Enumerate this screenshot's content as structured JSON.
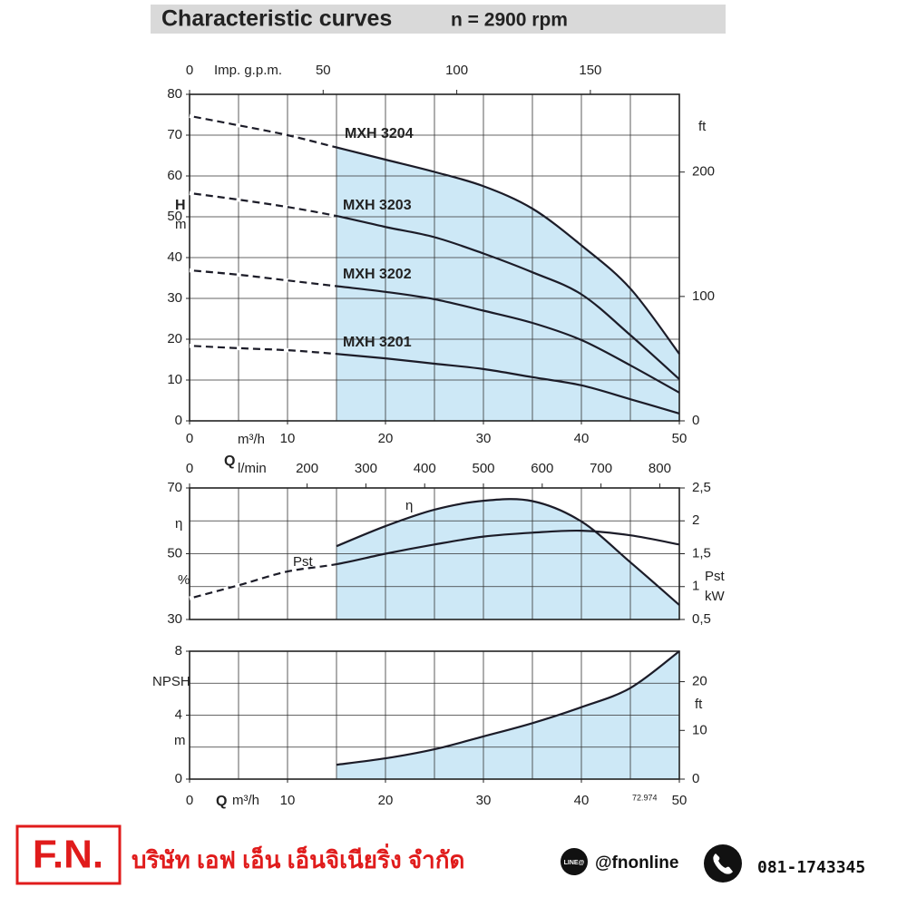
{
  "header": {
    "title": "Characteristic curves",
    "subtitle": "n = 2900 rpm"
  },
  "chart_data": [
    {
      "type": "line",
      "x": [
        0,
        5,
        10,
        15,
        20,
        25,
        30,
        35,
        40,
        45,
        50
      ],
      "xlim": [
        0,
        50
      ],
      "xticks": [
        0,
        10,
        20,
        30,
        40,
        50
      ],
      "x_unit": "m³/h",
      "xgrid": [
        5,
        10,
        15,
        20,
        25,
        30,
        35,
        40,
        45
      ],
      "x2lim": [
        0,
        183.3
      ],
      "x2ticks": [
        0,
        50,
        100,
        150
      ],
      "x2_label": "Imp. g.p.m.",
      "ylim": [
        0,
        80
      ],
      "yticks": [
        0,
        10,
        20,
        30,
        40,
        50,
        60,
        70,
        80
      ],
      "ygrid": [
        10,
        20,
        30,
        40,
        50,
        60,
        70
      ],
      "y_label": "H",
      "y_unit": "m",
      "y2lim": [
        0,
        262.5
      ],
      "y2ticks": [
        0,
        100,
        200
      ],
      "y2_label": "ft",
      "grid": true,
      "highlight_from": 15,
      "shade_series": 0,
      "shade_color": "#cde8f6",
      "series": [
        {
          "name": "MXH 3204",
          "color": "#1c1c28",
          "values": [
            74.7,
            72.4,
            70,
            67,
            64,
            61,
            57.5,
            52,
            43,
            32.4,
            16.4
          ]
        },
        {
          "name": "MXH 3203",
          "color": "#1c1c28",
          "values": [
            55.8,
            54.2,
            52.4,
            50.2,
            47.5,
            45,
            41,
            36.4,
            31,
            21,
            10.2
          ]
        },
        {
          "name": "MXH 3202",
          "color": "#1c1c28",
          "values": [
            36.9,
            35.8,
            34.4,
            33,
            31.6,
            29.8,
            27,
            24,
            19.8,
            13.6,
            6.9
          ]
        },
        {
          "name": "MXH 3201",
          "color": "#1c1c28",
          "values": [
            18.4,
            17.8,
            17.3,
            16.4,
            15.3,
            14,
            12.7,
            10.7,
            8.7,
            5.3,
            1.8
          ]
        }
      ]
    },
    {
      "type": "line",
      "xlim": [
        0,
        50
      ],
      "xgrid": [
        5,
        10,
        15,
        20,
        25,
        30,
        35,
        40,
        45
      ],
      "x_label": "Q",
      "x2lim": [
        0,
        833.3
      ],
      "x2ticks": [
        0,
        200,
        300,
        400,
        500,
        600,
        700,
        800
      ],
      "x2_label": "l/min",
      "ylim": [
        30,
        70
      ],
      "yticks": [
        30,
        50,
        70
      ],
      "ygrid": [
        40,
        50,
        60
      ],
      "y_label": "η",
      "y_unit": "%",
      "y2lim": [
        0.5,
        2.5
      ],
      "y2ticks": [
        {
          "value": 0.5,
          "label": "0,5"
        },
        1,
        {
          "value": 1.5,
          "label": "1,5"
        },
        2,
        {
          "value": 2.5,
          "label": "2,5"
        }
      ],
      "y2_label": "Pst",
      "y2_unit": "kW",
      "grid": true,
      "highlight_from": 15,
      "shade_series": 0,
      "shade_color": "#cde8f6",
      "series": [
        {
          "name": "η",
          "color": "#1c1c28",
          "x": [
            15,
            20,
            25,
            30,
            35,
            40,
            45,
            50
          ],
          "values": [
            52.3,
            58.4,
            63.4,
            66.1,
            66,
            59.8,
            47.4,
            34.4
          ]
        },
        {
          "name": "Pst",
          "color": "#1c1c28",
          "axis": "y2",
          "x": [
            0,
            5,
            10,
            15,
            20,
            25,
            30,
            35,
            40,
            45,
            50
          ],
          "values": [
            0.82,
            1.02,
            1.23,
            1.34,
            1.5,
            1.64,
            1.76,
            1.82,
            1.85,
            1.78,
            1.64
          ]
        }
      ]
    },
    {
      "type": "line",
      "x": [
        15,
        20,
        25,
        30,
        35,
        40,
        45,
        50
      ],
      "xlim": [
        0,
        50
      ],
      "xticks": [
        0,
        10,
        20,
        30,
        40,
        50
      ],
      "x_label": "Q",
      "x_unit": "m³/h",
      "xgrid": [
        5,
        10,
        15,
        20,
        25,
        30,
        35,
        40,
        45
      ],
      "ylim": [
        0,
        8
      ],
      "yticks": [
        0,
        4,
        8
      ],
      "ygrid": [
        2,
        4,
        6
      ],
      "y_label": "NPSH",
      "y_unit": "m",
      "y2lim": [
        0,
        26.25
      ],
      "y2ticks": [
        0,
        10,
        20
      ],
      "y2_label": "ft",
      "note": "72.974",
      "grid": true,
      "highlight_from": 15,
      "shade_series": 0,
      "shade_color": "#cde8f6",
      "series": [
        {
          "name": "NPSH",
          "color": "#1c1c28",
          "values": [
            0.9,
            1.3,
            1.87,
            2.67,
            3.5,
            4.5,
            5.7,
            8
          ]
        }
      ]
    }
  ],
  "footer": {
    "logo": "F.N.",
    "company": "บริษัท เอฟ เอ็น เอ็นจิเนียริ่ง จำกัด",
    "line_badge": "LINE@",
    "line_id": "@fnonline",
    "phone": "081-1743345"
  }
}
